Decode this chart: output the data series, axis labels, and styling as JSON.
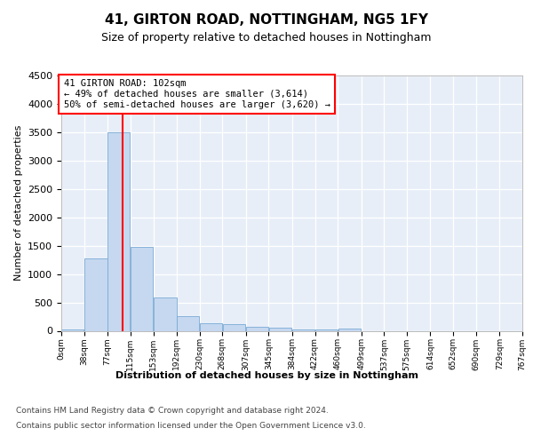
{
  "title1": "41, GIRTON ROAD, NOTTINGHAM, NG5 1FY",
  "title2": "Size of property relative to detached houses in Nottingham",
  "xlabel": "Distribution of detached houses by size in Nottingham",
  "ylabel": "Number of detached properties",
  "bins": [
    0,
    38,
    77,
    115,
    153,
    192,
    230,
    268,
    307,
    345,
    384,
    422,
    460,
    499,
    537,
    575,
    614,
    652,
    690,
    729,
    767
  ],
  "values": [
    30,
    1270,
    3500,
    1480,
    580,
    255,
    140,
    120,
    70,
    50,
    30,
    30,
    40,
    0,
    0,
    0,
    0,
    0,
    0,
    0
  ],
  "bar_color": "#c5d8f0",
  "bar_edge_color": "#7aaad4",
  "red_line_x": 102,
  "annotation_line1": "41 GIRTON ROAD: 102sqm",
  "annotation_line2": "← 49% of detached houses are smaller (3,614)",
  "annotation_line3": "50% of semi-detached houses are larger (3,620) →",
  "ylim": [
    0,
    4500
  ],
  "xlim": [
    0,
    767
  ],
  "yticks": [
    0,
    500,
    1000,
    1500,
    2000,
    2500,
    3000,
    3500,
    4000,
    4500
  ],
  "tick_labels": [
    "0sqm",
    "38sqm",
    "77sqm",
    "115sqm",
    "153sqm",
    "192sqm",
    "230sqm",
    "268sqm",
    "307sqm",
    "345sqm",
    "384sqm",
    "422sqm",
    "460sqm",
    "499sqm",
    "537sqm",
    "575sqm",
    "614sqm",
    "652sqm",
    "690sqm",
    "729sqm",
    "767sqm"
  ],
  "footer1": "Contains HM Land Registry data © Crown copyright and database right 2024.",
  "footer2": "Contains public sector information licensed under the Open Government Licence v3.0.",
  "plot_bg": "#e8eef8",
  "fig_bg": "#ffffff",
  "grid_color": "#ffffff",
  "title1_fontsize": 11,
  "title2_fontsize": 9,
  "ylabel_fontsize": 8,
  "xlabel_fontsize": 8,
  "ytick_fontsize": 8,
  "xtick_fontsize": 6.5,
  "footer_fontsize": 6.5,
  "annot_fontsize": 7.5
}
